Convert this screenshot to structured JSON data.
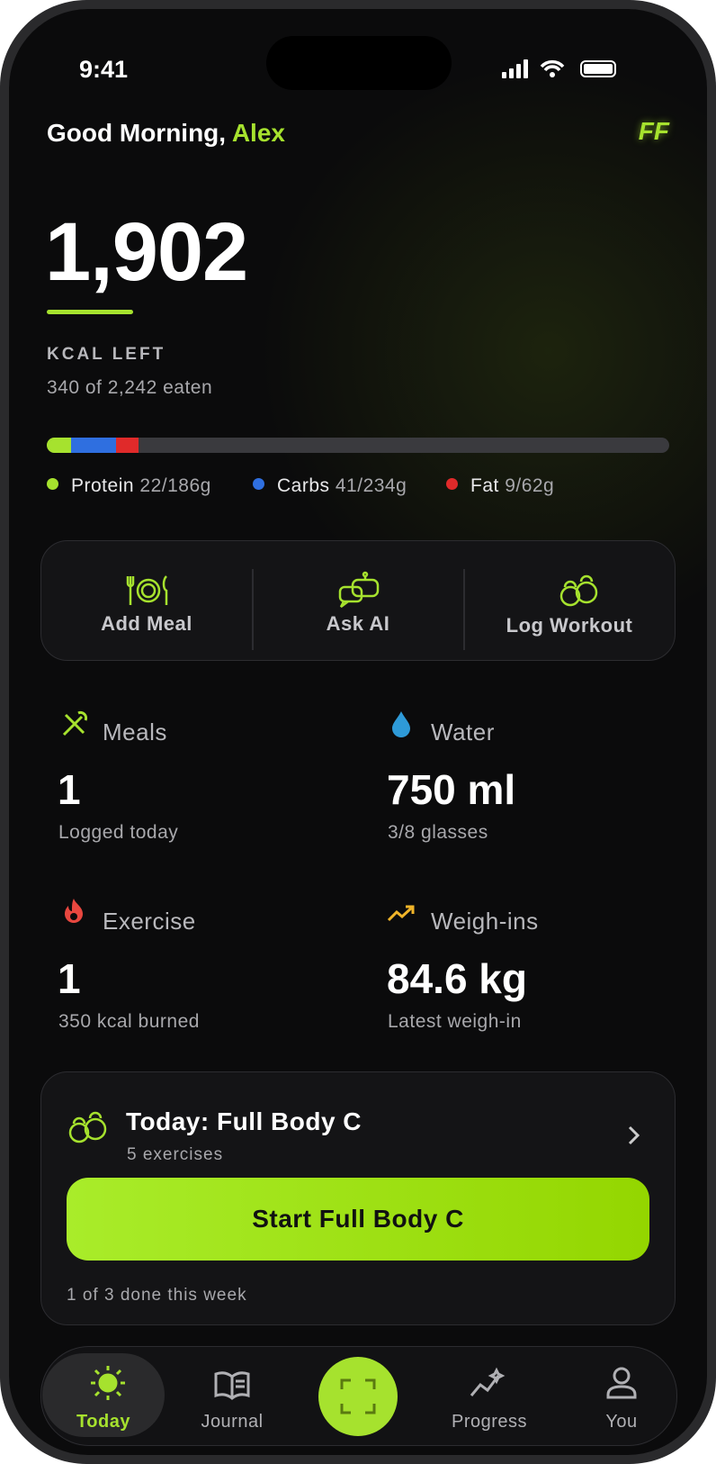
{
  "status_bar": {
    "time": "9:41"
  },
  "header": {
    "greeting": "Good Morning,",
    "name": "Alex",
    "logo": "FF"
  },
  "calories": {
    "left": "1,902",
    "label": "KCAL LEFT",
    "eaten": "340 of 2,242 eaten"
  },
  "macros": [
    {
      "name": "Protein",
      "amount": "22/186g"
    },
    {
      "name": "Carbs",
      "amount": "41/234g"
    },
    {
      "name": "Fat",
      "amount": "9/62g"
    }
  ],
  "actions": [
    "Add Meal",
    "Ask AI",
    "Log Workout"
  ],
  "stats": [
    {
      "label": "Meals",
      "value": "1",
      "sub": "Logged today"
    },
    {
      "label": "Water",
      "value": "750 ml",
      "sub": "3/8 glasses"
    },
    {
      "label": "Exercise",
      "value": "1",
      "sub": "350 kcal burned"
    },
    {
      "label": "Weigh-ins",
      "value": "84.6 kg",
      "sub": "Latest weigh-in"
    }
  ],
  "workout": {
    "title": "Today: Full Body C",
    "subtitle": "5 exercises",
    "button": "Start Full Body C",
    "footer": "1 of 3 done this week"
  },
  "nav": [
    "Today",
    "Journal",
    "Progress",
    "You"
  ]
}
